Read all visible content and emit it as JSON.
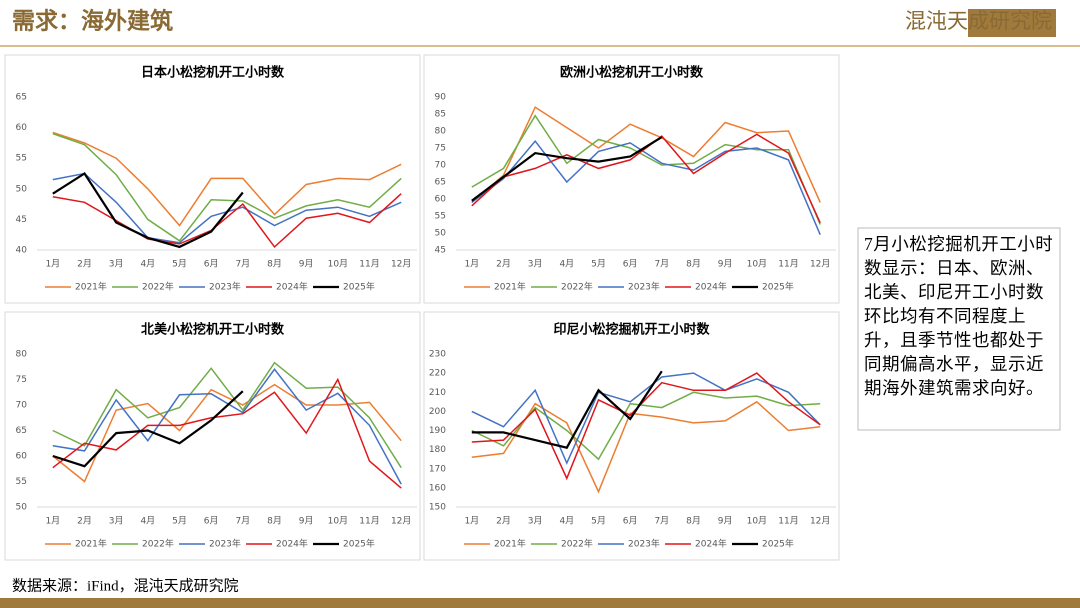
{
  "header": {
    "title": "需求：海外建筑",
    "logo": "混沌天成研究院"
  },
  "note": "7月小松挖掘机开工小时数显示：日本、欧洲、北美、印尼开工小时数环比均有不同程度上升，且季节性也都处于同期偏高水平，显示近期海外建筑需求向好。",
  "source": "数据来源：iFind，混沌天成研究院",
  "chart_data": [
    {
      "type": "line",
      "title": "日本小松挖机开工小时数",
      "categories": [
        "1月",
        "2月",
        "3月",
        "4月",
        "5月",
        "6月",
        "7月",
        "8月",
        "9月",
        "10月",
        "11月",
        "12月"
      ],
      "ylim": [
        40,
        65
      ],
      "yticks": [
        40,
        45,
        50,
        55,
        60,
        65
      ],
      "grid": false,
      "legend": "bottom",
      "series": [
        {
          "name": "2021年",
          "color": "#ed7d31",
          "values": [
            59.2,
            57.5,
            55,
            50,
            44,
            51.7,
            51.7,
            45.8,
            50.7,
            51.7,
            51.5,
            54
          ]
        },
        {
          "name": "2022年",
          "color": "#70ad47",
          "values": [
            59,
            57.2,
            52.3,
            45,
            41.5,
            48.2,
            48,
            45.2,
            47.2,
            48.2,
            47,
            51.7
          ]
        },
        {
          "name": "2023年",
          "color": "#4472c4",
          "values": [
            51.5,
            52.5,
            47.8,
            42,
            41.2,
            45.5,
            47,
            44,
            46.5,
            47,
            45.5,
            47.8
          ]
        },
        {
          "name": "2024年",
          "color": "#e0161b",
          "values": [
            48.7,
            47.8,
            44.8,
            41.8,
            41,
            43.2,
            47.5,
            40.5,
            45.2,
            46,
            44.5,
            49.2
          ]
        },
        {
          "name": "2025年",
          "color": "#000000",
          "values": [
            49.2,
            52.5,
            44.5,
            42,
            40.5,
            43,
            49.4,
            null,
            null,
            null,
            null,
            null
          ]
        }
      ]
    },
    {
      "type": "line",
      "title": "欧洲小松挖机开工小时数",
      "categories": [
        "1月",
        "2月",
        "3月",
        "4月",
        "5月",
        "6月",
        "7月",
        "8月",
        "9月",
        "10月",
        "11月",
        "12月"
      ],
      "ylim": [
        45,
        90
      ],
      "yticks": [
        45,
        50,
        55,
        60,
        65,
        70,
        75,
        80,
        85,
        90
      ],
      "grid": false,
      "legend": "bottom",
      "series": [
        {
          "name": "2021年",
          "color": "#ed7d31",
          "values": [
            59,
            67,
            87,
            81,
            75,
            82,
            78,
            72.5,
            82.5,
            79.5,
            80,
            59
          ]
        },
        {
          "name": "2022年",
          "color": "#70ad47",
          "values": [
            63.5,
            69,
            84.5,
            70.5,
            77.5,
            75,
            70,
            70.5,
            76,
            74.5,
            74.5,
            52.5
          ]
        },
        {
          "name": "2023年",
          "color": "#4472c4",
          "values": [
            59,
            66,
            77,
            65,
            74,
            76.5,
            70.5,
            68.5,
            74,
            75,
            71.5,
            49.5
          ]
        },
        {
          "name": "2024年",
          "color": "#e0161b",
          "values": [
            58,
            66.5,
            69,
            73,
            69,
            71.5,
            78.5,
            67.5,
            73.5,
            79,
            73.5,
            53
          ]
        },
        {
          "name": "2025年",
          "color": "#000000",
          "values": [
            59.5,
            66.5,
            73.5,
            72,
            71,
            72.5,
            78.2,
            null,
            null,
            null,
            null,
            null
          ]
        }
      ]
    },
    {
      "type": "line",
      "title": "北美小松挖机开工小时数",
      "categories": [
        "1月",
        "2月",
        "3月",
        "4月",
        "5月",
        "6月",
        "7月",
        "8月",
        "9月",
        "10月",
        "11月",
        "12月"
      ],
      "ylim": [
        50,
        80
      ],
      "yticks": [
        50,
        55,
        60,
        65,
        70,
        75,
        80
      ],
      "grid": false,
      "legend": "bottom",
      "series": [
        {
          "name": "2021年",
          "color": "#ed7d31",
          "values": [
            60,
            55,
            69,
            70.3,
            65,
            73,
            70,
            74,
            70,
            70,
            70.5,
            63
          ]
        },
        {
          "name": "2022年",
          "color": "#70ad47",
          "values": [
            65,
            62,
            73,
            67.5,
            69.5,
            77.2,
            69,
            78.3,
            73.3,
            73.5,
            67.5,
            57.7
          ]
        },
        {
          "name": "2023年",
          "color": "#4472c4",
          "values": [
            62,
            61,
            71,
            63,
            72,
            72.2,
            68.5,
            77,
            69,
            72.3,
            66,
            54.5
          ]
        },
        {
          "name": "2024年",
          "color": "#e0161b",
          "values": [
            57.7,
            62.5,
            61.2,
            66,
            66,
            67.5,
            68.3,
            72.5,
            64.5,
            75,
            59,
            53.7
          ]
        },
        {
          "name": "2025年",
          "color": "#000000",
          "values": [
            60,
            58,
            64.5,
            65,
            62.5,
            67,
            72.7,
            null,
            null,
            null,
            null,
            null
          ]
        }
      ]
    },
    {
      "type": "line",
      "title": "印尼小松挖掘机开工小时数",
      "categories": [
        "1月",
        "2月",
        "3月",
        "4月",
        "5月",
        "6月",
        "7月",
        "8月",
        "9月",
        "10月",
        "11月",
        "12月"
      ],
      "ylim": [
        150,
        230
      ],
      "yticks": [
        150,
        160,
        170,
        180,
        190,
        200,
        210,
        220,
        230
      ],
      "grid": false,
      "legend": "bottom",
      "series": [
        {
          "name": "2021年",
          "color": "#ed7d31",
          "values": [
            176,
            178,
            204,
            194,
            158,
            199,
            197,
            194,
            195,
            205,
            190,
            192
          ]
        },
        {
          "name": "2022年",
          "color": "#70ad47",
          "values": [
            190,
            182,
            202,
            190,
            175,
            204,
            202,
            210,
            207,
            208,
            203,
            204
          ]
        },
        {
          "name": "2023年",
          "color": "#4472c4",
          "values": [
            200,
            192,
            211,
            173,
            210,
            205,
            218,
            220,
            211,
            217,
            210,
            193
          ]
        },
        {
          "name": "2024年",
          "color": "#e0161b",
          "values": [
            184,
            185,
            201,
            165,
            206,
            198,
            215,
            211,
            211,
            220,
            205,
            193
          ]
        },
        {
          "name": "2025年",
          "color": "#000000",
          "values": [
            189,
            189,
            185,
            181,
            211,
            196,
            221,
            null,
            null,
            null,
            null,
            null
          ]
        }
      ]
    }
  ]
}
